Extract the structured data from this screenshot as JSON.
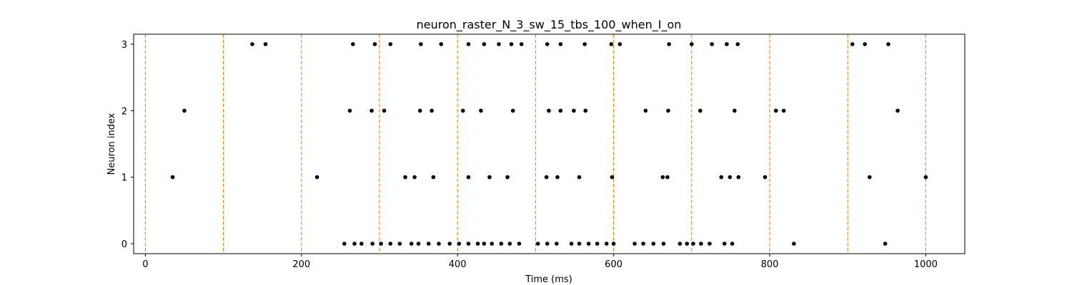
{
  "chart_data": {
    "type": "scatter",
    "title": "neuron_raster_N_3_sw_15_tbs_100_when_I_on",
    "xlabel": "Time (ms)",
    "ylabel": "Neuron index",
    "xlim": [
      -15,
      1050
    ],
    "ylim": [
      -0.15,
      3.15
    ],
    "xticks": [
      0,
      200,
      400,
      600,
      800,
      1000
    ],
    "yticks": [
      0,
      1,
      2,
      3
    ],
    "grid": false,
    "marker_color": "#000000",
    "vline_color": "#ff7f0e",
    "vlines": [
      0,
      100,
      200,
      300,
      400,
      500,
      600,
      700,
      800,
      900,
      1000
    ],
    "spikes": [
      {
        "neuron": 0,
        "times": [
          255,
          268,
          277,
          291,
          302,
          314,
          326,
          341,
          350,
          363,
          376,
          390,
          402,
          414,
          426,
          434,
          444,
          456,
          467,
          479,
          503,
          515,
          527,
          546,
          556,
          568,
          579,
          591,
          600,
          627,
          638,
          651,
          664,
          685,
          694,
          702,
          712,
          723,
          742,
          752,
          831,
          948
        ]
      },
      {
        "neuron": 1,
        "times": [
          35,
          220,
          333,
          345,
          369,
          414,
          441,
          464,
          514,
          528,
          556,
          598,
          663,
          669,
          738,
          749,
          760,
          794,
          928,
          1000
        ]
      },
      {
        "neuron": 2,
        "times": [
          50,
          262,
          290,
          306,
          352,
          367,
          407,
          430,
          471,
          517,
          532,
          549,
          564,
          641,
          670,
          711,
          755,
          808,
          818,
          964
        ]
      },
      {
        "neuron": 3,
        "times": [
          137,
          154,
          266,
          294,
          314,
          353,
          379,
          414,
          434,
          453,
          469,
          482,
          515,
          532,
          563,
          597,
          608,
          671,
          700,
          726,
          745,
          759,
          906,
          922,
          952
        ]
      }
    ]
  }
}
